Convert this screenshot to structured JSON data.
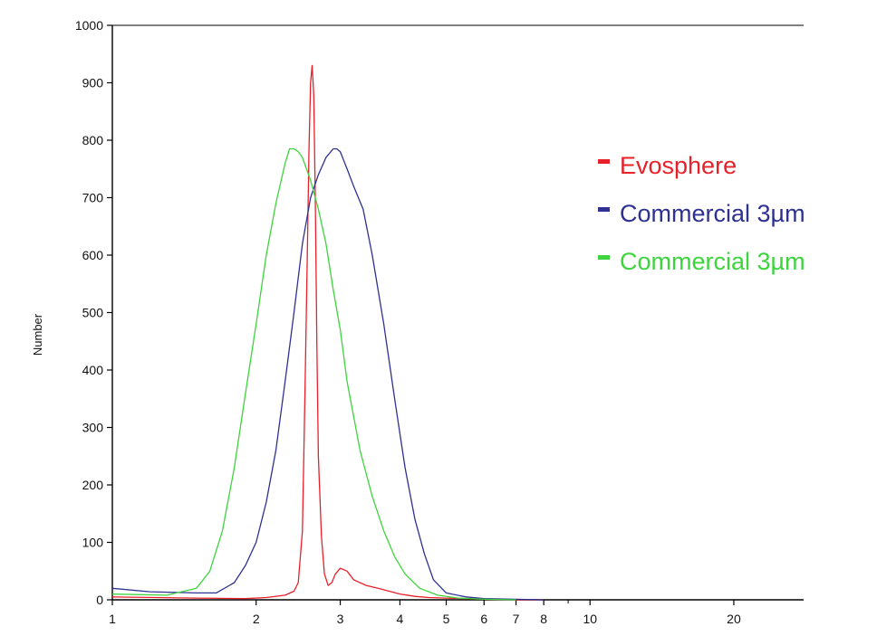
{
  "chart_data": {
    "type": "line",
    "title": "",
    "xlabel": "",
    "ylabel": "Number",
    "xscale": "log",
    "xlim": [
      1,
      28
    ],
    "ylim": [
      0,
      1000
    ],
    "x_ticks": [
      1,
      2,
      3,
      4,
      5,
      6,
      7,
      8,
      10,
      20
    ],
    "x_minor_ticks": [
      9
    ],
    "y_ticks": [
      0,
      100,
      200,
      300,
      400,
      500,
      600,
      700,
      800,
      900,
      1000
    ],
    "grid": false,
    "legend_position": "right",
    "series": [
      {
        "name": "Evosphere",
        "color": "#e8202a",
        "x": [
          1.0,
          1.5,
          1.9,
          2.1,
          2.3,
          2.4,
          2.45,
          2.5,
          2.53,
          2.56,
          2.58,
          2.6,
          2.62,
          2.64,
          2.66,
          2.68,
          2.7,
          2.74,
          2.78,
          2.83,
          2.88,
          2.93,
          3.0,
          3.1,
          3.2,
          3.4,
          3.6,
          3.8,
          4.0,
          4.3,
          4.6,
          5.0,
          5.5,
          6.0,
          7.0,
          8.0
        ],
        "values": [
          5,
          3,
          2,
          4,
          8,
          15,
          30,
          120,
          350,
          600,
          780,
          900,
          930,
          880,
          700,
          450,
          250,
          110,
          45,
          25,
          30,
          45,
          55,
          50,
          35,
          25,
          20,
          15,
          10,
          6,
          4,
          3,
          2,
          1,
          0,
          0
        ]
      },
      {
        "name": "Commercial 3µm",
        "color": "#2e3192",
        "x": [
          1.0,
          1.2,
          1.5,
          1.65,
          1.8,
          1.9,
          2.0,
          2.1,
          2.2,
          2.3,
          2.4,
          2.5,
          2.6,
          2.7,
          2.8,
          2.9,
          2.95,
          3.0,
          3.1,
          3.2,
          3.35,
          3.5,
          3.7,
          3.9,
          4.1,
          4.3,
          4.5,
          4.7,
          5.0,
          5.5,
          6.0,
          7.0,
          8.0
        ],
        "values": [
          20,
          14,
          12,
          12,
          30,
          60,
          100,
          170,
          260,
          380,
          500,
          620,
          700,
          740,
          770,
          785,
          785,
          780,
          750,
          720,
          680,
          600,
          480,
          350,
          230,
          140,
          80,
          35,
          12,
          5,
          2,
          1,
          0
        ]
      },
      {
        "name": "Commercial 3µm",
        "color": "#3dd43d",
        "x": [
          1.0,
          1.3,
          1.5,
          1.6,
          1.7,
          1.8,
          1.9,
          2.0,
          2.1,
          2.2,
          2.3,
          2.35,
          2.4,
          2.45,
          2.5,
          2.6,
          2.7,
          2.8,
          2.9,
          3.0,
          3.1,
          3.3,
          3.5,
          3.7,
          3.9,
          4.1,
          4.4,
          4.8,
          5.3,
          6.0,
          7.0
        ],
        "values": [
          10,
          8,
          20,
          50,
          120,
          230,
          360,
          480,
          600,
          690,
          760,
          785,
          785,
          780,
          770,
          730,
          680,
          620,
          540,
          470,
          380,
          260,
          180,
          120,
          75,
          45,
          20,
          8,
          3,
          1,
          0
        ]
      }
    ]
  }
}
